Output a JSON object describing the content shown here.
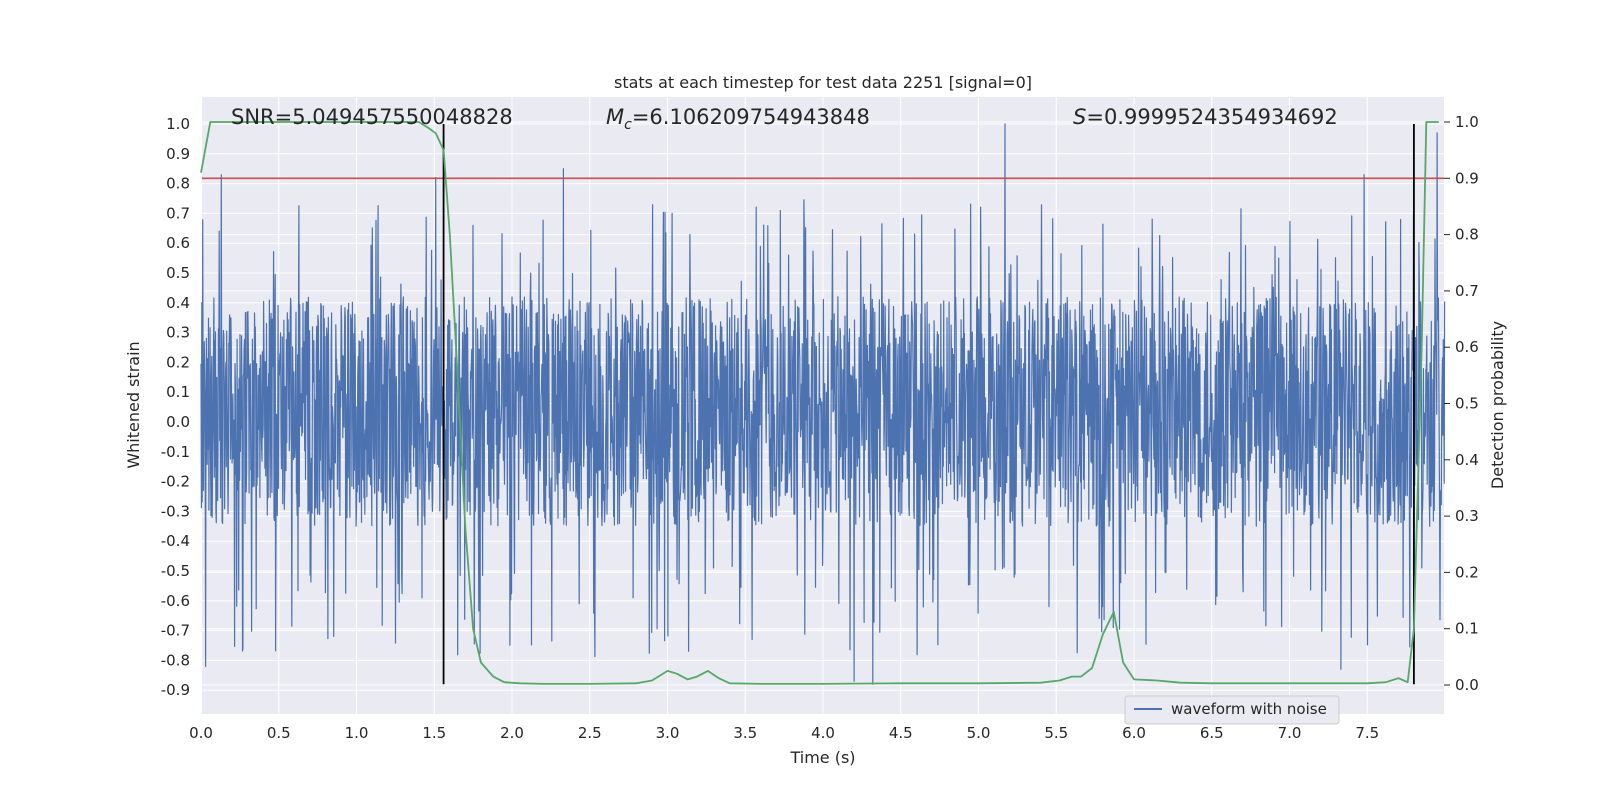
{
  "chart_data": {
    "type": "line",
    "title": "stats at each timestep for test data 2251 [signal=0]",
    "xlabel": "Time (s)",
    "ylabel": "Whitened strain",
    "y2label": "Detection probability",
    "xlim": [
      0.0,
      8.0
    ],
    "ylim": [
      -1.0,
      1.1
    ],
    "y2lim": [
      -0.05,
      1.05
    ],
    "x_ticks": [
      "0.0",
      "0.5",
      "1.0",
      "1.5",
      "2.0",
      "2.5",
      "3.0",
      "3.5",
      "4.0",
      "4.5",
      "5.0",
      "5.5",
      "6.0",
      "6.5",
      "7.0",
      "7.5"
    ],
    "y_ticks": [
      "1.0",
      "0.9",
      "0.8",
      "0.7",
      "0.6",
      "0.5",
      "0.4",
      "0.3",
      "0.2",
      "0.1",
      "0.0",
      "-0.1",
      "-0.2",
      "-0.3",
      "-0.4",
      "-0.5",
      "-0.6",
      "-0.7",
      "-0.8",
      "-0.9"
    ],
    "y2_ticks": [
      "1.0",
      "0.9",
      "0.8",
      "0.7",
      "0.6",
      "0.5",
      "0.4",
      "0.3",
      "0.2",
      "0.1",
      "0.0"
    ],
    "annotations": {
      "snr_label": "SNR=5.049457550048828",
      "mc_symbol": "M",
      "mc_sub": "c",
      "mc_value": "=6.106209754943848",
      "s_symbol": "S",
      "s_value": "=0.9999524354934692"
    },
    "legend": {
      "entries": [
        "waveform with noise"
      ],
      "placement": "lower-right"
    },
    "grid": true,
    "threshold_line": {
      "axis": "y2",
      "value": 0.9,
      "color": "#c44e52"
    },
    "vertical_lines": [
      {
        "x": 1.56,
        "y_from": -0.88,
        "y_to": 1.0,
        "color": "#000000"
      },
      {
        "x": 7.8,
        "y_from": -0.88,
        "y_to": 1.0,
        "color": "#000000"
      }
    ],
    "series": [
      {
        "name": "waveform with noise",
        "axis": "y",
        "color": "#4c72b0",
        "style": "dense noise",
        "typical_band": [
          -0.35,
          0.42
        ],
        "peaks": [
          {
            "x": 0.13,
            "y": 0.83
          },
          {
            "x": 1.51,
            "y": 0.82
          },
          {
            "x": 2.33,
            "y": 0.85
          },
          {
            "x": 5.17,
            "y": 1.0
          },
          {
            "x": 7.48,
            "y": 0.83
          },
          {
            "x": 7.95,
            "y": 0.97
          }
        ],
        "troughs": [
          {
            "x": 0.03,
            "y": -0.82
          },
          {
            "x": 0.27,
            "y": -0.76
          },
          {
            "x": 4.2,
            "y": -0.87
          },
          {
            "x": 4.32,
            "y": -0.88
          },
          {
            "x": 7.33,
            "y": -0.83
          },
          {
            "x": 7.8,
            "y": -0.8
          }
        ]
      },
      {
        "name": "",
        "axis": "y2",
        "color": "#55a868",
        "x": [
          0.0,
          0.06,
          0.13,
          0.3,
          0.6,
          1.0,
          1.3,
          1.4,
          1.46,
          1.51,
          1.56,
          1.6,
          1.65,
          1.7,
          1.75,
          1.8,
          1.88,
          1.95,
          2.05,
          2.2,
          2.5,
          2.8,
          2.9,
          3.0,
          3.06,
          3.13,
          3.19,
          3.26,
          3.33,
          3.4,
          3.6,
          4.0,
          4.5,
          5.0,
          5.4,
          5.52,
          5.6,
          5.66,
          5.73,
          5.8,
          5.87,
          5.93,
          6.0,
          6.15,
          6.3,
          6.5,
          7.0,
          7.5,
          7.62,
          7.7,
          7.76,
          7.8,
          7.85,
          7.88,
          7.96
        ],
        "y": [
          0.91,
          1.0,
          1.0,
          1.0,
          1.0,
          1.0,
          1.0,
          1.0,
          0.99,
          0.98,
          0.95,
          0.8,
          0.55,
          0.28,
          0.1,
          0.04,
          0.015,
          0.005,
          0.003,
          0.002,
          0.002,
          0.003,
          0.008,
          0.025,
          0.02,
          0.01,
          0.015,
          0.025,
          0.012,
          0.003,
          0.002,
          0.002,
          0.003,
          0.003,
          0.004,
          0.008,
          0.015,
          0.015,
          0.03,
          0.09,
          0.13,
          0.04,
          0.01,
          0.008,
          0.004,
          0.003,
          0.003,
          0.003,
          0.005,
          0.012,
          0.005,
          0.1,
          0.6,
          1.0,
          1.0
        ]
      }
    ]
  }
}
